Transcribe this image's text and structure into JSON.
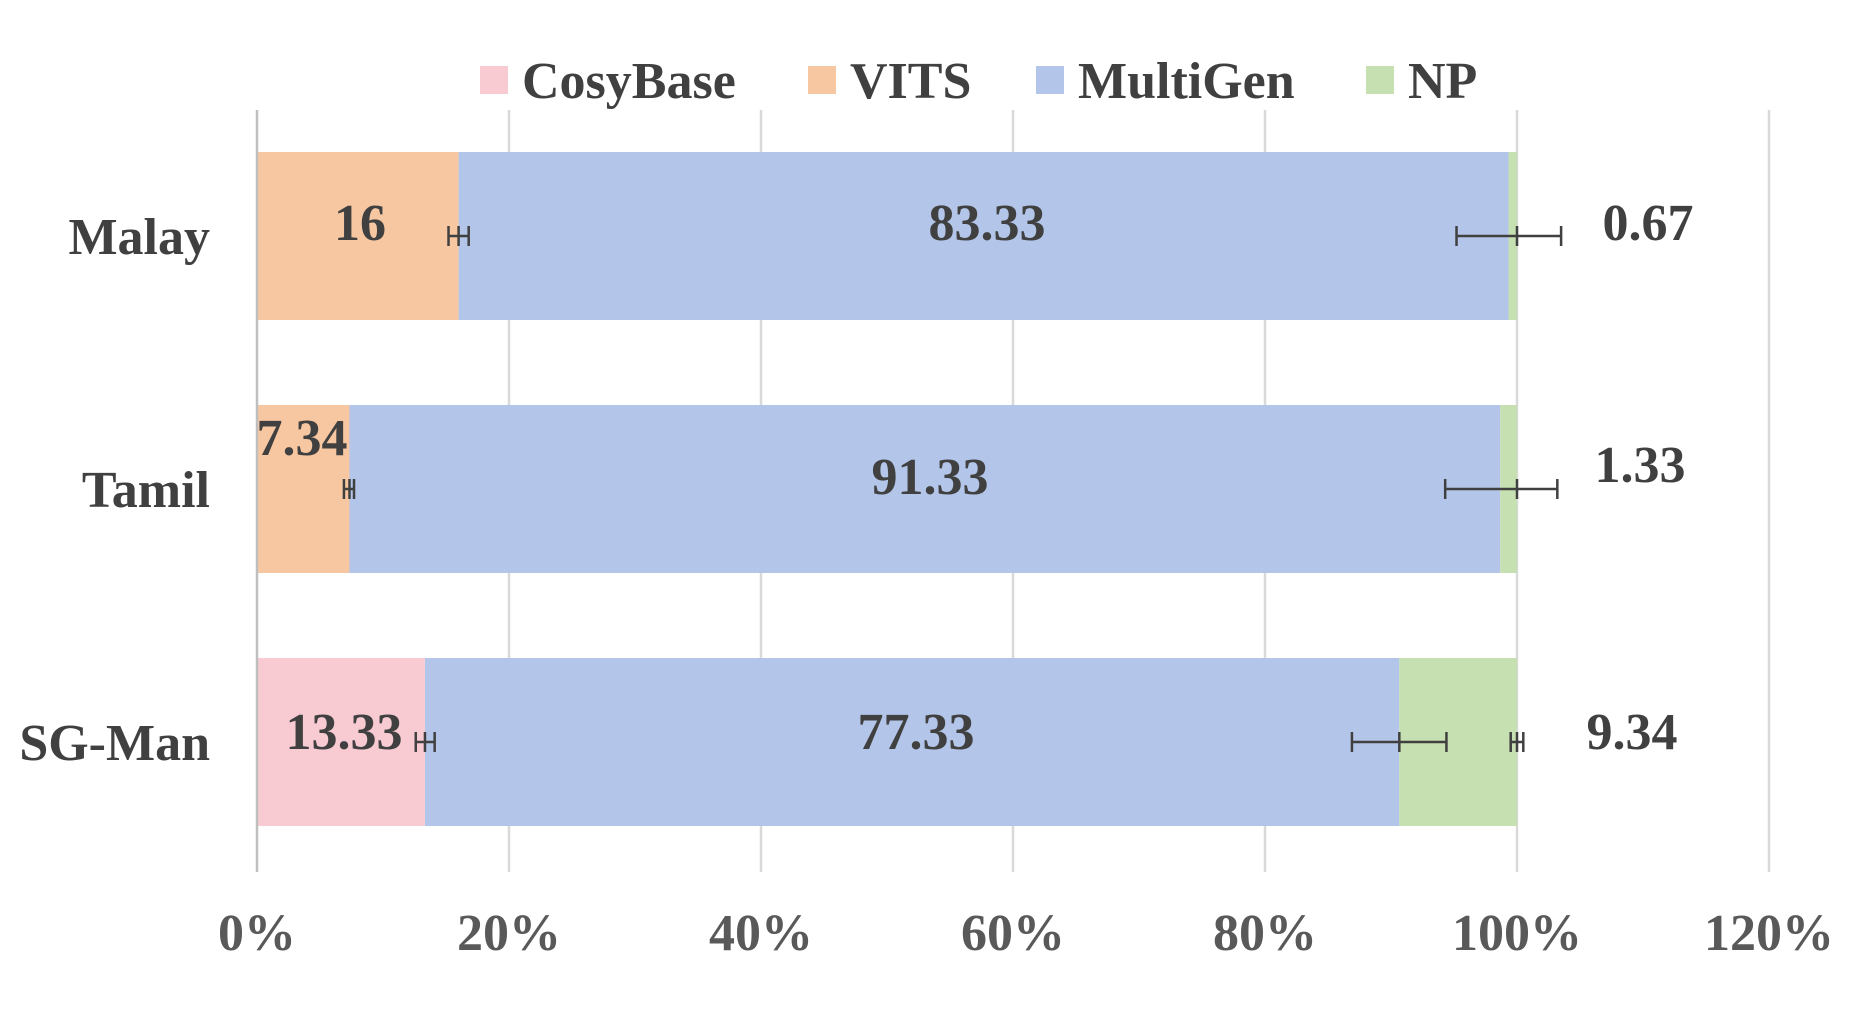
{
  "chart_data": {
    "type": "bar",
    "orientation": "horizontal",
    "stacked": "percent",
    "categories": [
      "Malay",
      "Tamil",
      "SG-Man"
    ],
    "series": [
      {
        "name": "CosyBase",
        "color": "#f8cbd3",
        "values": [
          0,
          0,
          13.33
        ]
      },
      {
        "name": "VITS",
        "color": "#f7c7a2",
        "values": [
          16,
          7.34,
          0
        ]
      },
      {
        "name": "MultiGen",
        "color": "#b3c6e9",
        "values": [
          83.33,
          91.33,
          77.33
        ]
      },
      {
        "name": "NP",
        "color": "#c6e0b1",
        "values": [
          0.67,
          1.33,
          9.34
        ]
      }
    ],
    "data_labels": [
      {
        "category": "Malay",
        "series": "VITS",
        "text": "16"
      },
      {
        "category": "Malay",
        "series": "MultiGen",
        "text": "83.33"
      },
      {
        "category": "Malay",
        "series": "NP",
        "text": "0.67"
      },
      {
        "category": "Tamil",
        "series": "VITS",
        "text": "7.34"
      },
      {
        "category": "Tamil",
        "series": "MultiGen",
        "text": "91.33"
      },
      {
        "category": "Tamil",
        "series": "NP",
        "text": "1.33"
      },
      {
        "category": "SG-Man",
        "series": "CosyBase",
        "text": "13.33"
      },
      {
        "category": "SG-Man",
        "series": "MultiGen",
        "text": "77.33"
      },
      {
        "category": "SG-Man",
        "series": "NP",
        "text": "9.34"
      }
    ],
    "error_bars": [
      {
        "category": "Malay",
        "center": 16,
        "low": 15.2,
        "high": 16.8
      },
      {
        "category": "Malay",
        "center": 100,
        "low": 95.2,
        "high": 103.5
      },
      {
        "category": "Tamil",
        "center": 7.34,
        "low": 6.9,
        "high": 7.7
      },
      {
        "category": "Tamil",
        "center": 100,
        "low": 94.3,
        "high": 103.2
      },
      {
        "category": "SG-Man",
        "center": 13.33,
        "low": 12.6,
        "high": 14.1
      },
      {
        "category": "SG-Man",
        "center": 90.66,
        "low": 86.9,
        "high": 94.4
      },
      {
        "category": "SG-Man",
        "center": 100,
        "low": 99.5,
        "high": 100.5
      }
    ],
    "x_ticks": [
      "0%",
      "20%",
      "40%",
      "60%",
      "80%",
      "100%",
      "120%"
    ],
    "xlim": [
      0,
      120
    ],
    "grid": true,
    "legend_position": "top",
    "title": "",
    "xlabel": "",
    "ylabel": ""
  }
}
